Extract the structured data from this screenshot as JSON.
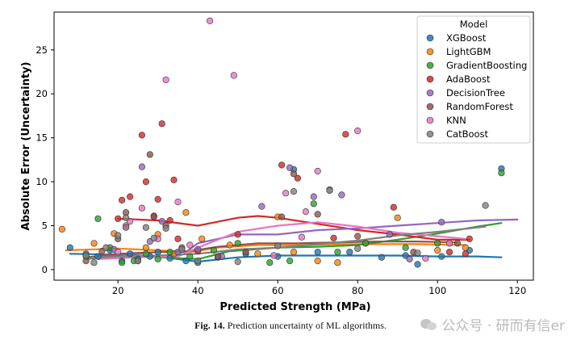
{
  "chart_data": {
    "type": "scatter",
    "title": "",
    "xlabel": "Predicted Strength (MPa)",
    "ylabel": "Absolute Error (Uncertainty)",
    "xlim": [
      4,
      124
    ],
    "ylim": [
      -1.2,
      29.3
    ],
    "xticks": [
      20,
      40,
      60,
      80,
      100,
      120
    ],
    "yticks": [
      0,
      5,
      10,
      15,
      20,
      25
    ],
    "grid": false,
    "legend": {
      "title": "Model",
      "placement": "top-right"
    },
    "series": [
      {
        "name": "XGBoost",
        "color": "#1f77b4",
        "points": [
          [
            8,
            2.5
          ],
          [
            12,
            1.8
          ],
          [
            15,
            1.5
          ],
          [
            18,
            2.2
          ],
          [
            21,
            1.0
          ],
          [
            23,
            1.8
          ],
          [
            25,
            1.2
          ],
          [
            28,
            1.5
          ],
          [
            30,
            2.0
          ],
          [
            33,
            1.3
          ],
          [
            37,
            1.0
          ],
          [
            40,
            0.8
          ],
          [
            45,
            1.4
          ],
          [
            52,
            1.8
          ],
          [
            60,
            1.5
          ],
          [
            64,
            11.4
          ],
          [
            70,
            2.0
          ],
          [
            78,
            2.0
          ],
          [
            86,
            1.4
          ],
          [
            92,
            1.6
          ],
          [
            95,
            0.6
          ],
          [
            101,
            1.5
          ],
          [
            108,
            2.2
          ],
          [
            116,
            11.5
          ]
        ],
        "trend": [
          [
            8,
            1.8
          ],
          [
            20,
            1.7
          ],
          [
            30,
            1.5
          ],
          [
            40,
            0.9
          ],
          [
            50,
            1.4
          ],
          [
            60,
            1.6
          ],
          [
            70,
            1.6
          ],
          [
            80,
            1.6
          ],
          [
            90,
            1.6
          ],
          [
            100,
            1.5
          ],
          [
            110,
            1.5
          ],
          [
            116,
            1.4
          ]
        ]
      },
      {
        "name": "LightGBM",
        "color": "#ff7f0e",
        "points": [
          [
            6,
            4.6
          ],
          [
            14,
            3.0
          ],
          [
            19,
            4.1
          ],
          [
            22,
            5.0
          ],
          [
            27,
            2.5
          ],
          [
            30,
            4.0
          ],
          [
            34,
            1.8
          ],
          [
            37,
            6.5
          ],
          [
            41,
            3.5
          ],
          [
            48,
            2.8
          ],
          [
            55,
            1.8
          ],
          [
            60,
            6.0
          ],
          [
            64,
            2.0
          ],
          [
            70,
            1.0
          ],
          [
            75,
            0.8
          ],
          [
            82,
            3.0
          ],
          [
            90,
            5.9
          ],
          [
            100,
            2.2
          ],
          [
            107,
            2.5
          ]
        ],
        "trend": [
          [
            7,
            2.2
          ],
          [
            20,
            2.4
          ],
          [
            30,
            2.2
          ],
          [
            38,
            2.0
          ],
          [
            45,
            2.5
          ],
          [
            55,
            2.8
          ],
          [
            65,
            2.8
          ],
          [
            75,
            2.9
          ],
          [
            85,
            2.9
          ],
          [
            95,
            2.9
          ],
          [
            107,
            2.8
          ]
        ]
      },
      {
        "name": "GradientBoosting",
        "color": "#2ca02c",
        "points": [
          [
            12,
            1.5
          ],
          [
            15,
            5.8
          ],
          [
            18,
            2.5
          ],
          [
            21,
            0.8
          ],
          [
            24,
            1.0
          ],
          [
            27,
            1.8
          ],
          [
            30,
            1.2
          ],
          [
            33,
            2.0
          ],
          [
            38,
            1.5
          ],
          [
            44,
            2.2
          ],
          [
            50,
            3.0
          ],
          [
            58,
            0.8
          ],
          [
            63,
            1.0
          ],
          [
            69,
            7.5
          ],
          [
            75,
            2.0
          ],
          [
            82,
            3.0
          ],
          [
            92,
            2.5
          ],
          [
            100,
            3.0
          ],
          [
            116,
            11.0
          ]
        ],
        "trend": [
          [
            12,
            1.2
          ],
          [
            20,
            1.6
          ],
          [
            30,
            1.4
          ],
          [
            40,
            1.2
          ],
          [
            48,
            2.1
          ],
          [
            60,
            2.5
          ],
          [
            70,
            2.6
          ],
          [
            80,
            2.8
          ],
          [
            90,
            3.4
          ],
          [
            100,
            4.1
          ],
          [
            110,
            4.9
          ],
          [
            116,
            5.3
          ]
        ]
      },
      {
        "name": "AdaBoost",
        "color": "#d62728",
        "points": [
          [
            20,
            5.8
          ],
          [
            21,
            7.9
          ],
          [
            23,
            8.3
          ],
          [
            26,
            15.3
          ],
          [
            27,
            10.0
          ],
          [
            29,
            6.1
          ],
          [
            30,
            8.0
          ],
          [
            31,
            16.6
          ],
          [
            33,
            5.6
          ],
          [
            34,
            10.2
          ],
          [
            35,
            3.5
          ],
          [
            40,
            2.1
          ],
          [
            50,
            4.0
          ],
          [
            61,
            11.9
          ],
          [
            65,
            10.4
          ],
          [
            74,
            3.6
          ],
          [
            77,
            15.4
          ],
          [
            89,
            7.1
          ],
          [
            103,
            2.0
          ],
          [
            107,
            1.8
          ],
          [
            108,
            3.5
          ]
        ],
        "trend": [
          [
            20,
            5.8
          ],
          [
            30,
            5.6
          ],
          [
            40,
            5.0
          ],
          [
            50,
            5.9
          ],
          [
            55,
            6.1
          ],
          [
            60,
            5.9
          ],
          [
            70,
            5.2
          ],
          [
            80,
            4.5
          ],
          [
            90,
            4.0
          ],
          [
            100,
            3.4
          ],
          [
            108,
            3.4
          ]
        ]
      },
      {
        "name": "DecisionTree",
        "color": "#9467bd",
        "points": [
          [
            19,
            2.3
          ],
          [
            22,
            4.8
          ],
          [
            26,
            11.7
          ],
          [
            28,
            3.2
          ],
          [
            31,
            5.5
          ],
          [
            35,
            2.0
          ],
          [
            40,
            2.3
          ],
          [
            46,
            1.5
          ],
          [
            56,
            7.2
          ],
          [
            63,
            11.6
          ],
          [
            69,
            8.3
          ],
          [
            76,
            8.5
          ],
          [
            88,
            4.0
          ],
          [
            93,
            1.2
          ],
          [
            101,
            5.4
          ]
        ],
        "trend": [
          [
            15,
            1.7
          ],
          [
            25,
            1.8
          ],
          [
            30,
            2.0
          ],
          [
            37,
            2.0
          ],
          [
            40,
            3.0
          ],
          [
            50,
            4.0
          ],
          [
            60,
            4.0
          ],
          [
            70,
            4.5
          ],
          [
            80,
            4.7
          ],
          [
            90,
            5.0
          ],
          [
            100,
            5.3
          ],
          [
            110,
            5.6
          ],
          [
            120,
            5.7
          ]
        ]
      },
      {
        "name": "RandomForest",
        "color": "#8c564b",
        "points": [
          [
            12,
            1.0
          ],
          [
            16,
            2.1
          ],
          [
            20,
            3.5
          ],
          [
            22,
            6.5
          ],
          [
            25,
            1.0
          ],
          [
            28,
            13.1
          ],
          [
            29,
            6.0
          ],
          [
            32,
            5.0
          ],
          [
            36,
            2.5
          ],
          [
            45,
            1.5
          ],
          [
            52,
            2.0
          ],
          [
            61,
            6.0
          ],
          [
            64,
            10.9
          ],
          [
            70,
            6.3
          ],
          [
            80,
            3.8
          ],
          [
            94,
            2.0
          ],
          [
            105,
            3.0
          ]
        ],
        "trend": [
          [
            12,
            1.4
          ],
          [
            20,
            1.8
          ],
          [
            30,
            2.0
          ],
          [
            38,
            2.1
          ],
          [
            45,
            2.6
          ],
          [
            55,
            3.0
          ],
          [
            65,
            3.0
          ],
          [
            75,
            3.1
          ],
          [
            85,
            3.2
          ],
          [
            95,
            3.2
          ],
          [
            105,
            3.1
          ]
        ]
      },
      {
        "name": "KNN",
        "color": "#e377c2",
        "points": [
          [
            20,
            2.0
          ],
          [
            23,
            5.5
          ],
          [
            26,
            7.0
          ],
          [
            30,
            3.5
          ],
          [
            32,
            21.6
          ],
          [
            35,
            7.7
          ],
          [
            38,
            2.8
          ],
          [
            43,
            28.3
          ],
          [
            49,
            22.1
          ],
          [
            59,
            1.6
          ],
          [
            62,
            8.7
          ],
          [
            66,
            3.7
          ],
          [
            67,
            6.6
          ],
          [
            70,
            11.2
          ],
          [
            73,
            9.1
          ],
          [
            80,
            15.8
          ],
          [
            97,
            1.3
          ],
          [
            103,
            3.0
          ]
        ],
        "trend": [
          [
            15,
            1.2
          ],
          [
            25,
            1.4
          ],
          [
            35,
            1.5
          ],
          [
            40,
            2.5
          ],
          [
            50,
            4.3
          ],
          [
            60,
            5.0
          ],
          [
            70,
            5.4
          ],
          [
            80,
            4.9
          ],
          [
            90,
            4.2
          ],
          [
            100,
            3.8
          ],
          [
            107,
            3.5
          ]
        ]
      },
      {
        "name": "CatBoost",
        "color": "#7f7f7f",
        "points": [
          [
            12,
            1.6
          ],
          [
            14,
            0.8
          ],
          [
            17,
            2.5
          ],
          [
            20,
            3.9
          ],
          [
            22,
            5.9
          ],
          [
            25,
            1.0
          ],
          [
            27,
            4.8
          ],
          [
            29,
            3.6
          ],
          [
            32,
            4.7
          ],
          [
            36,
            2.3
          ],
          [
            40,
            1.0
          ],
          [
            50,
            0.9
          ],
          [
            60,
            2.7
          ],
          [
            64,
            8.9
          ],
          [
            73,
            9.0
          ],
          [
            80,
            2.4
          ],
          [
            95,
            1.9
          ],
          [
            112,
            7.3
          ]
        ],
        "trend": [
          [
            12,
            1.3
          ],
          [
            20,
            1.5
          ],
          [
            30,
            1.6
          ],
          [
            40,
            1.8
          ],
          [
            50,
            2.3
          ],
          [
            60,
            2.5
          ],
          [
            70,
            2.9
          ],
          [
            80,
            3.3
          ],
          [
            90,
            3.9
          ],
          [
            100,
            4.3
          ],
          [
            112,
            4.9
          ]
        ]
      }
    ]
  },
  "caption": {
    "label": "Fig. 14.",
    "text": "Prediction uncertainty of ML algorithms."
  },
  "watermark": {
    "text": "公众号 · 研而有信er"
  }
}
